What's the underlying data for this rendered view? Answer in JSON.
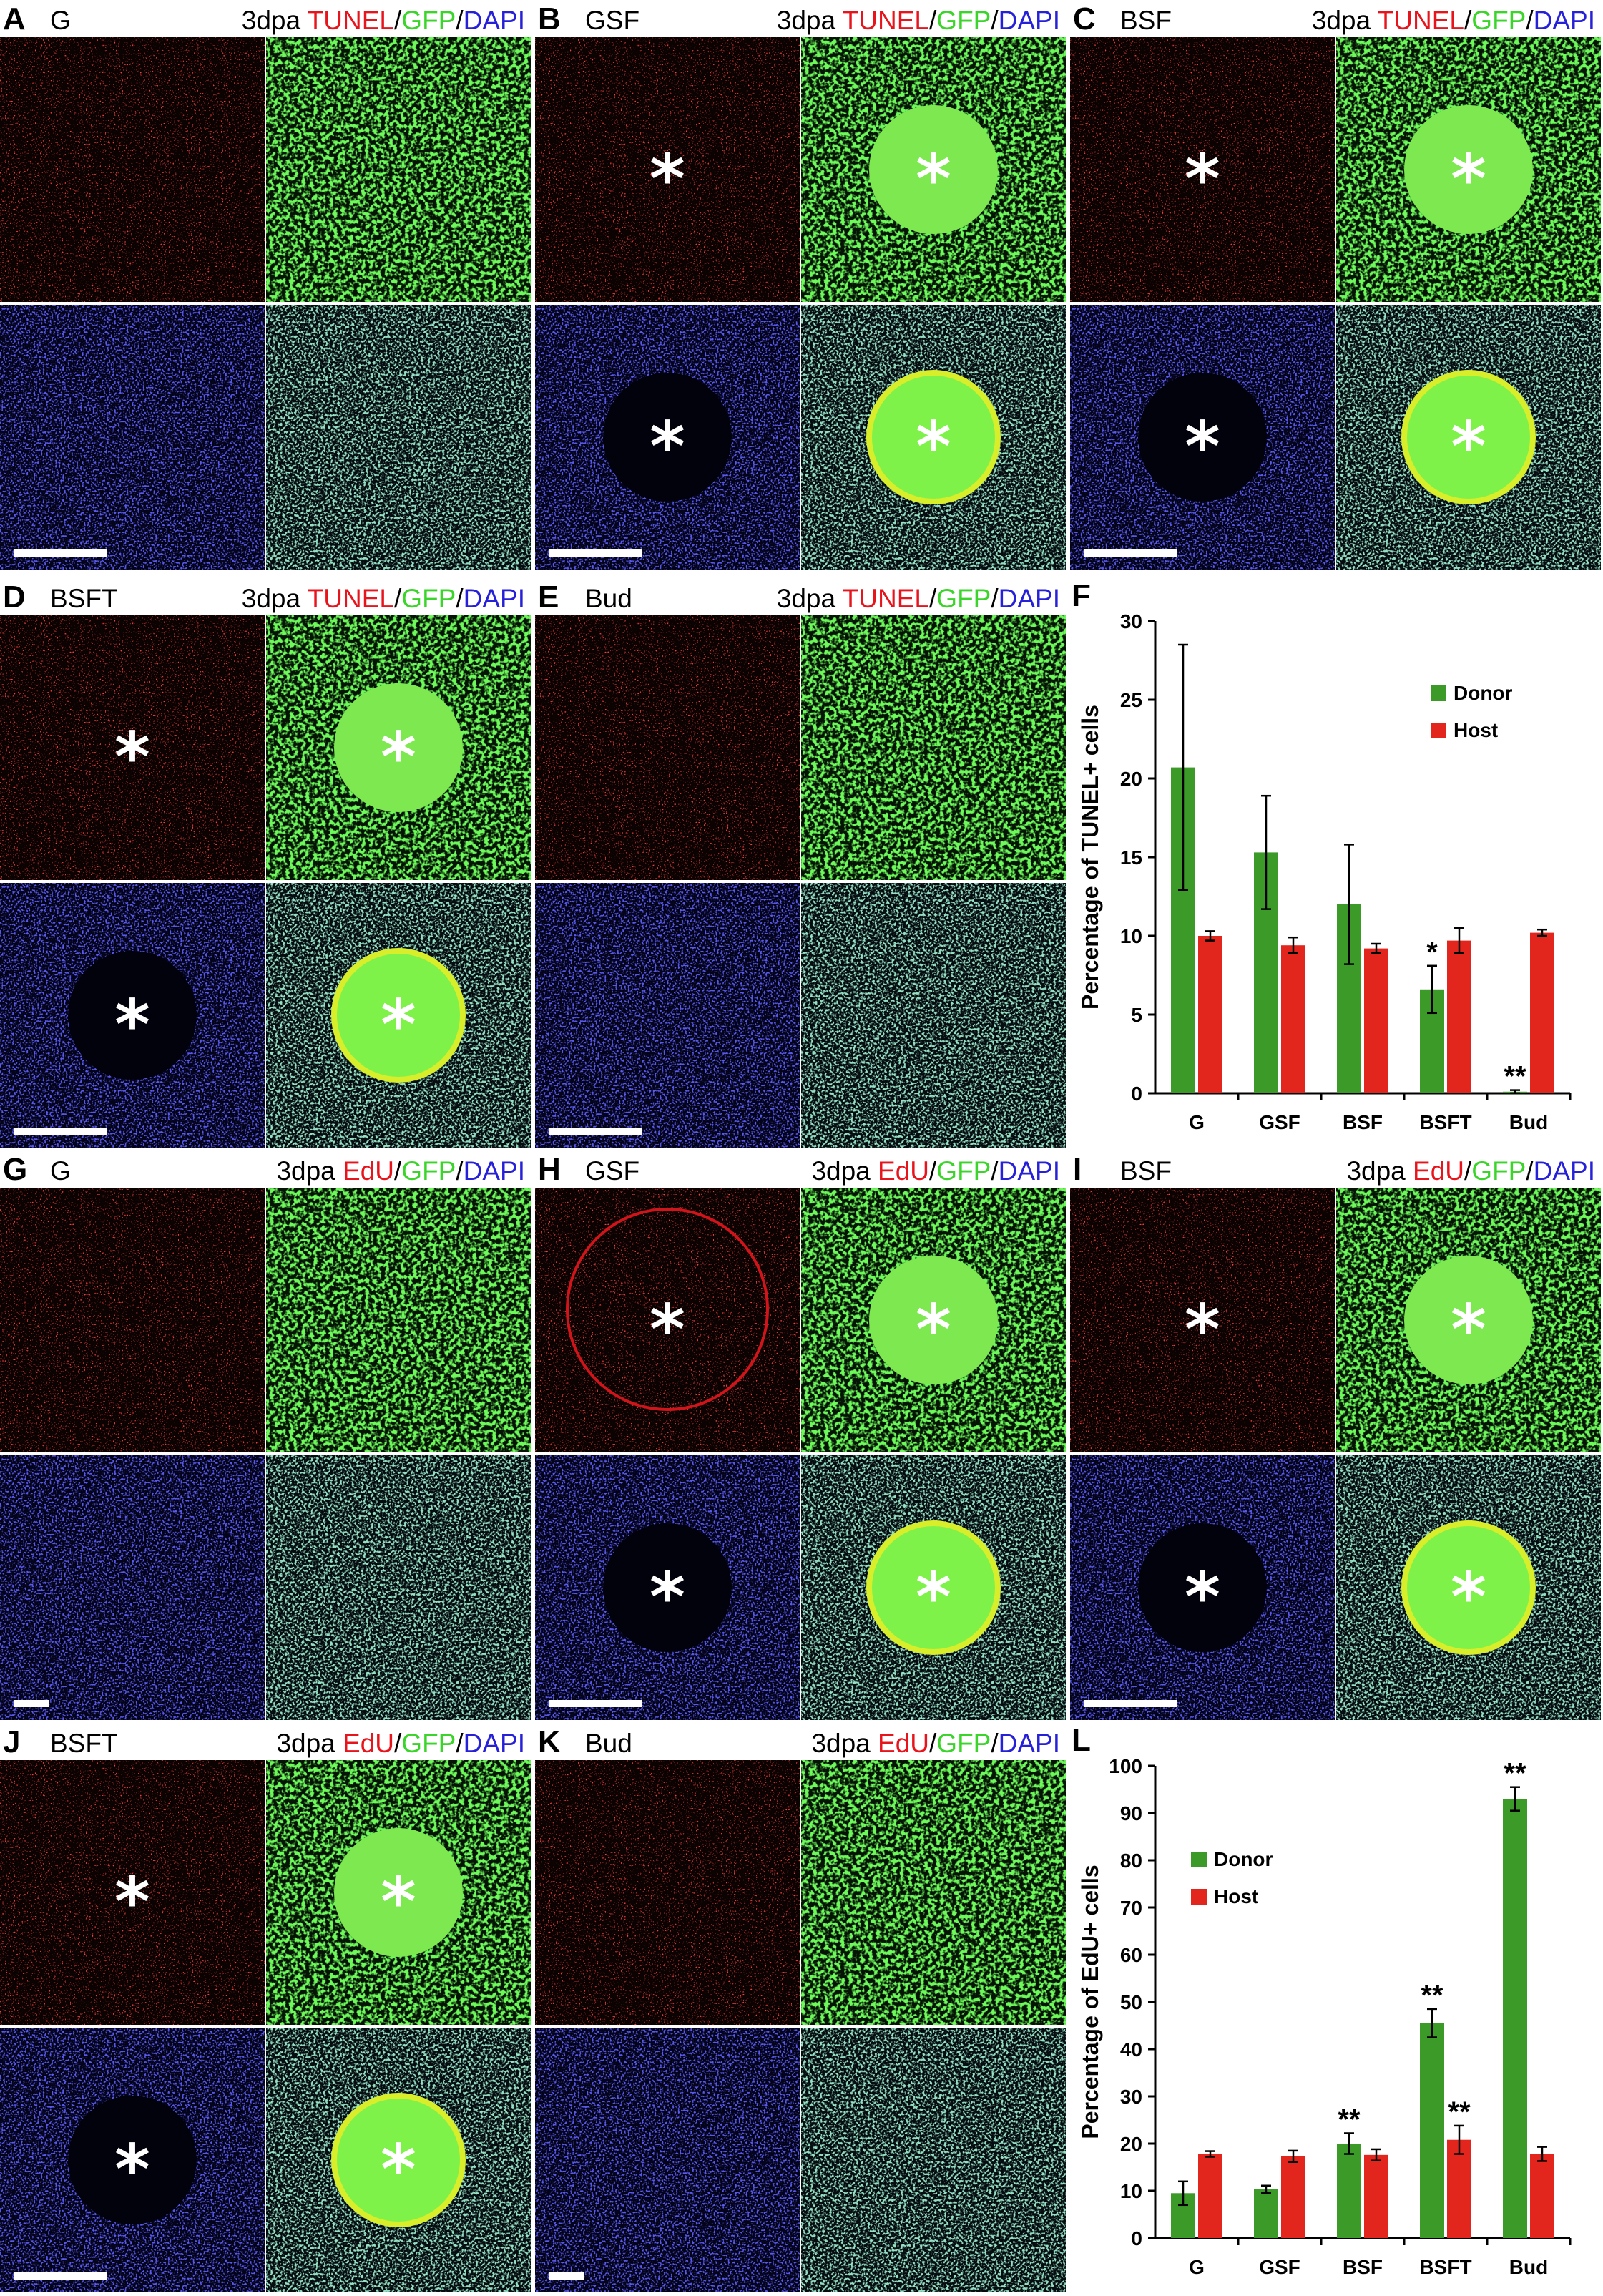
{
  "panels": [
    {
      "letter": "A",
      "condition": "G",
      "stage": "3dpa",
      "stain": "TUNEL",
      "sep1": "/",
      "gfp": "GFP",
      "sep2": "/",
      "dapi": "DAPI"
    },
    {
      "letter": "B",
      "condition": "GSF",
      "stage": "3dpa",
      "stain": "TUNEL",
      "sep1": "/",
      "gfp": "GFP",
      "sep2": "/",
      "dapi": "DAPI"
    },
    {
      "letter": "C",
      "condition": "BSF",
      "stage": "3dpa",
      "stain": "TUNEL",
      "sep1": "/",
      "gfp": "GFP",
      "sep2": "/",
      "dapi": "DAPI"
    },
    {
      "letter": "D",
      "condition": "BSFT",
      "stage": "3dpa",
      "stain": "TUNEL",
      "sep1": "/",
      "gfp": "GFP",
      "sep2": "/",
      "dapi": "DAPI"
    },
    {
      "letter": "E",
      "condition": "Bud",
      "stage": "3dpa",
      "stain": "TUNEL",
      "sep1": "/",
      "gfp": "GFP",
      "sep2": "/",
      "dapi": "DAPI"
    },
    {
      "letter": "G",
      "condition": "G",
      "stage": "3dpa",
      "stain": "EdU",
      "sep1": "/",
      "gfp": "GFP",
      "sep2": "/",
      "dapi": "DAPI"
    },
    {
      "letter": "H",
      "condition": "GSF",
      "stage": "3dpa",
      "stain": "EdU",
      "sep1": "/",
      "gfp": "GFP",
      "sep2": "/",
      "dapi": "DAPI"
    },
    {
      "letter": "I",
      "condition": "BSF",
      "stage": "3dpa",
      "stain": "EdU",
      "sep1": "/",
      "gfp": "GFP",
      "sep2": "/",
      "dapi": "DAPI"
    },
    {
      "letter": "J",
      "condition": "BSFT",
      "stage": "3dpa",
      "stain": "EdU",
      "sep1": "/",
      "gfp": "GFP",
      "sep2": "/",
      "dapi": "DAPI"
    },
    {
      "letter": "K",
      "condition": "Bud",
      "stage": "3dpa",
      "stain": "EdU",
      "sep1": "/",
      "gfp": "GFP",
      "sep2": "/",
      "dapi": "DAPI"
    }
  ],
  "asterisk": "*",
  "colors": {
    "tunel_edu": "#e8141c",
    "gfp": "#3bd42a",
    "dapi": "#2620d8",
    "donor": "#3c9a29",
    "host": "#e3261d"
  },
  "chart_data": [
    {
      "panel": "F",
      "type": "bar",
      "ylabel": "Percentage of TUNEL+ cells",
      "categories": [
        "G",
        "GSF",
        "BSF",
        "BSFT",
        "Bud"
      ],
      "ylim": [
        0,
        30
      ],
      "yticks": [
        0,
        5,
        10,
        15,
        20,
        25,
        30
      ],
      "legend_position": "top-right",
      "series": [
        {
          "name": "Donor",
          "color": "#3c9a29",
          "values": [
            20.7,
            15.3,
            12.0,
            6.6,
            0.1
          ],
          "errors": [
            7.8,
            3.6,
            3.8,
            1.5,
            0.1
          ]
        },
        {
          "name": "Host",
          "color": "#e3261d",
          "values": [
            10.0,
            9.4,
            9.2,
            9.7,
            10.2
          ],
          "errors": [
            0.3,
            0.5,
            0.3,
            0.8,
            0.2
          ]
        }
      ],
      "annotations": [
        {
          "category": "BSFT",
          "series": "Donor",
          "text": "*"
        },
        {
          "category": "Bud",
          "series": "Donor",
          "text": "**"
        }
      ]
    },
    {
      "panel": "L",
      "type": "bar",
      "ylabel": "Percentage of EdU+ cells",
      "categories": [
        "G",
        "GSF",
        "BSF",
        "BSFT",
        "Bud"
      ],
      "ylim": [
        0,
        100
      ],
      "yticks": [
        0,
        10,
        20,
        30,
        40,
        50,
        60,
        70,
        80,
        90,
        100
      ],
      "legend_position": "top-left",
      "series": [
        {
          "name": "Donor",
          "color": "#3c9a29",
          "values": [
            9.5,
            10.3,
            20.0,
            45.5,
            93.0
          ],
          "errors": [
            2.5,
            0.8,
            2.2,
            3.0,
            2.5
          ]
        },
        {
          "name": "Host",
          "color": "#e3261d",
          "values": [
            17.8,
            17.3,
            17.6,
            20.8,
            17.8
          ],
          "errors": [
            0.6,
            1.2,
            1.2,
            3.0,
            1.5
          ]
        }
      ],
      "annotations": [
        {
          "category": "BSF",
          "series": "Donor",
          "text": "**"
        },
        {
          "category": "BSFT",
          "series": "Donor",
          "text": "**"
        },
        {
          "category": "BSFT",
          "series": "Host",
          "text": "**"
        },
        {
          "category": "Bud",
          "series": "Donor",
          "text": "**"
        }
      ]
    }
  ]
}
